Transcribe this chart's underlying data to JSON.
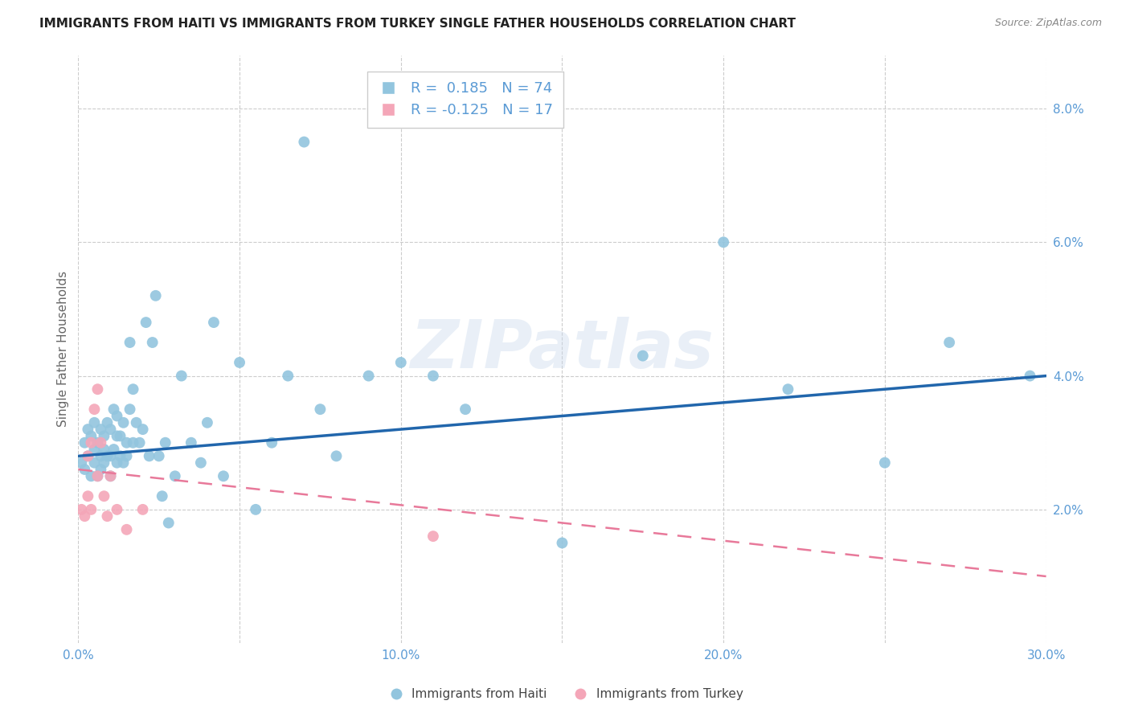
{
  "title": "IMMIGRANTS FROM HAITI VS IMMIGRANTS FROM TURKEY SINGLE FATHER HOUSEHOLDS CORRELATION CHART",
  "source": "Source: ZipAtlas.com",
  "ylabel": "Single Father Households",
  "xlim": [
    0.0,
    0.3
  ],
  "ylim": [
    0.0,
    0.088
  ],
  "xticks": [
    0.0,
    0.05,
    0.1,
    0.15,
    0.2,
    0.25,
    0.3
  ],
  "yticks": [
    0.02,
    0.04,
    0.06,
    0.08
  ],
  "ytick_labels": [
    "2.0%",
    "4.0%",
    "6.0%",
    "8.0%"
  ],
  "xtick_labels": [
    "0.0%",
    "",
    "10.0%",
    "",
    "20.0%",
    "",
    "30.0%"
  ],
  "haiti_color": "#92c5de",
  "turkey_color": "#f4a6b8",
  "haiti_line_color": "#2166ac",
  "turkey_line_color": "#e8799a",
  "watermark": "ZIPatlas",
  "legend_haiti_r": "0.185",
  "legend_haiti_n": "74",
  "legend_turkey_r": "-0.125",
  "legend_turkey_n": "17",
  "tick_color": "#5b9bd5",
  "haiti_scatter_x": [
    0.001,
    0.002,
    0.002,
    0.003,
    0.003,
    0.004,
    0.004,
    0.005,
    0.005,
    0.005,
    0.006,
    0.006,
    0.007,
    0.007,
    0.007,
    0.008,
    0.008,
    0.008,
    0.009,
    0.009,
    0.01,
    0.01,
    0.01,
    0.011,
    0.011,
    0.012,
    0.012,
    0.012,
    0.013,
    0.013,
    0.014,
    0.014,
    0.015,
    0.015,
    0.016,
    0.016,
    0.017,
    0.017,
    0.018,
    0.019,
    0.02,
    0.021,
    0.022,
    0.023,
    0.024,
    0.025,
    0.026,
    0.027,
    0.028,
    0.03,
    0.032,
    0.035,
    0.038,
    0.04,
    0.042,
    0.045,
    0.05,
    0.055,
    0.06,
    0.065,
    0.07,
    0.075,
    0.08,
    0.09,
    0.1,
    0.11,
    0.12,
    0.15,
    0.175,
    0.2,
    0.22,
    0.25,
    0.27,
    0.295
  ],
  "haiti_scatter_y": [
    0.027,
    0.03,
    0.026,
    0.028,
    0.032,
    0.025,
    0.031,
    0.027,
    0.029,
    0.033,
    0.03,
    0.025,
    0.028,
    0.032,
    0.026,
    0.031,
    0.029,
    0.027,
    0.033,
    0.028,
    0.028,
    0.032,
    0.025,
    0.035,
    0.029,
    0.027,
    0.031,
    0.034,
    0.028,
    0.031,
    0.033,
    0.027,
    0.03,
    0.028,
    0.045,
    0.035,
    0.03,
    0.038,
    0.033,
    0.03,
    0.032,
    0.048,
    0.028,
    0.045,
    0.052,
    0.028,
    0.022,
    0.03,
    0.018,
    0.025,
    0.04,
    0.03,
    0.027,
    0.033,
    0.048,
    0.025,
    0.042,
    0.02,
    0.03,
    0.04,
    0.075,
    0.035,
    0.028,
    0.04,
    0.042,
    0.04,
    0.035,
    0.015,
    0.043,
    0.06,
    0.038,
    0.027,
    0.045,
    0.04
  ],
  "turkey_scatter_x": [
    0.001,
    0.002,
    0.003,
    0.003,
    0.004,
    0.004,
    0.005,
    0.006,
    0.006,
    0.007,
    0.008,
    0.009,
    0.01,
    0.012,
    0.015,
    0.02,
    0.11
  ],
  "turkey_scatter_y": [
    0.02,
    0.019,
    0.022,
    0.028,
    0.02,
    0.03,
    0.035,
    0.025,
    0.038,
    0.03,
    0.022,
    0.019,
    0.025,
    0.02,
    0.017,
    0.02,
    0.016
  ],
  "haiti_trend_x0": 0.0,
  "haiti_trend_y0": 0.028,
  "haiti_trend_x1": 0.3,
  "haiti_trend_y1": 0.04,
  "turkey_trend_x0": 0.0,
  "turkey_trend_y0": 0.026,
  "turkey_trend_x1": 0.3,
  "turkey_trend_y1": 0.01
}
